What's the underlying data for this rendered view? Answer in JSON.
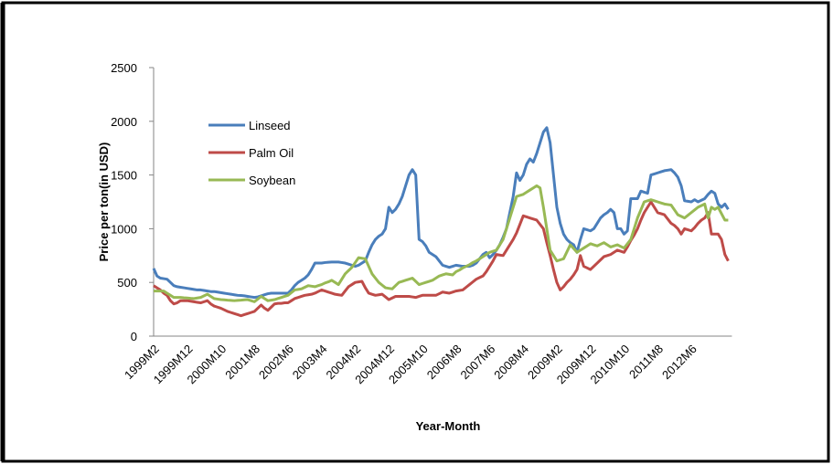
{
  "chart_data": {
    "type": "line",
    "x_label": "Year-Month",
    "y_label": "Price per ton(in USD)",
    "categories": [
      "1999M2",
      null,
      null,
      null,
      null,
      null,
      null,
      null,
      null,
      null,
      "1999M12",
      null,
      null,
      null,
      null,
      null,
      null,
      null,
      null,
      null,
      "2000M10",
      null,
      null,
      null,
      null,
      null,
      null,
      null,
      null,
      null,
      "2001M8",
      null,
      null,
      null,
      null,
      null,
      null,
      null,
      null,
      null,
      "2002M6",
      null,
      null,
      null,
      null,
      null,
      null,
      null,
      null,
      null,
      "2003M4",
      null,
      null,
      null,
      null,
      null,
      null,
      null,
      null,
      null,
      "2004M2",
      null,
      null,
      null,
      null,
      null,
      null,
      null,
      null,
      null,
      "2004M12",
      null,
      null,
      null,
      null,
      null,
      null,
      null,
      null,
      null,
      "2005M10",
      null,
      null,
      null,
      null,
      null,
      null,
      null,
      null,
      null,
      "2006M8",
      null,
      null,
      null,
      null,
      null,
      null,
      null,
      null,
      null,
      "2007M6",
      null,
      null,
      null,
      null,
      null,
      null,
      null,
      null,
      null,
      "2008M4",
      null,
      null,
      null,
      null,
      null,
      null,
      null,
      null,
      null,
      "2009M2",
      null,
      null,
      null,
      null,
      null,
      null,
      null,
      null,
      null,
      "2009M12",
      null,
      null,
      null,
      null,
      null,
      null,
      null,
      null,
      null,
      "2010M10",
      null,
      null,
      null,
      null,
      null,
      null,
      null,
      null,
      null,
      "2011M8",
      null,
      null,
      null,
      null,
      null,
      null,
      null,
      null,
      null,
      "2012M6",
      null,
      null,
      null,
      null,
      null,
      null,
      null,
      null,
      null,
      null,
      null
    ],
    "series": [
      {
        "name": "Linseed",
        "color": "#4a7ebb",
        "values": [
          630,
          560,
          540,
          535,
          530,
          500,
          470,
          460,
          455,
          450,
          445,
          440,
          435,
          430,
          430,
          425,
          420,
          415,
          415,
          410,
          405,
          400,
          395,
          390,
          385,
          380,
          378,
          375,
          370,
          365,
          360,
          365,
          375,
          385,
          395,
          400,
          400,
          400,
          400,
          400,
          400,
          430,
          470,
          500,
          520,
          540,
          570,
          620,
          680,
          680,
          680,
          685,
          688,
          690,
          690,
          690,
          685,
          680,
          670,
          660,
          650,
          660,
          680,
          700,
          780,
          850,
          900,
          930,
          950,
          1000,
          1200,
          1150,
          1180,
          1230,
          1300,
          1400,
          1500,
          1550,
          1500,
          900,
          880,
          840,
          780,
          760,
          740,
          700,
          660,
          650,
          640,
          650,
          660,
          655,
          650,
          650,
          650,
          660,
          680,
          720,
          760,
          780,
          730,
          760,
          800,
          850,
          920,
          1000,
          1150,
          1300,
          1520,
          1450,
          1500,
          1600,
          1650,
          1620,
          1700,
          1800,
          1900,
          1940,
          1800,
          1500,
          1200,
          1050,
          950,
          900,
          870,
          850,
          780,
          900,
          1000,
          990,
          980,
          1000,
          1050,
          1100,
          1130,
          1150,
          1180,
          1150,
          1000,
          1000,
          950,
          980,
          1280,
          1280,
          1280,
          1350,
          1340,
          1330,
          1500,
          1510,
          1520,
          1530,
          1540,
          1545,
          1550,
          1520,
          1480,
          1400,
          1260,
          1255,
          1250,
          1270,
          1250,
          1265,
          1280,
          1320,
          1350,
          1330,
          1230,
          1200,
          1230,
          1180
        ]
      },
      {
        "name": "Palm Oil",
        "color": "#be4b48",
        "values": [
          470,
          450,
          430,
          400,
          380,
          330,
          300,
          310,
          330,
          330,
          330,
          325,
          320,
          315,
          310,
          320,
          330,
          300,
          280,
          270,
          260,
          245,
          230,
          220,
          210,
          200,
          190,
          200,
          210,
          220,
          230,
          260,
          290,
          260,
          240,
          270,
          300,
          305,
          305,
          310,
          310,
          330,
          350,
          360,
          370,
          380,
          385,
          390,
          400,
          415,
          430,
          420,
          410,
          400,
          390,
          385,
          380,
          420,
          460,
          480,
          500,
          505,
          510,
          450,
          400,
          390,
          380,
          385,
          390,
          365,
          340,
          355,
          370,
          370,
          370,
          370,
          370,
          365,
          360,
          370,
          380,
          380,
          380,
          380,
          380,
          395,
          410,
          405,
          400,
          410,
          420,
          425,
          430,
          455,
          480,
          505,
          530,
          545,
          560,
          600,
          650,
          700,
          760,
          755,
          750,
          800,
          850,
          900,
          960,
          1040,
          1120,
          1110,
          1100,
          1090,
          1080,
          1040,
          1000,
          870,
          750,
          620,
          500,
          430,
          460,
          500,
          530,
          570,
          620,
          750,
          650,
          635,
          620,
          650,
          680,
          710,
          740,
          750,
          760,
          780,
          800,
          790,
          780,
          830,
          890,
          940,
          1000,
          1080,
          1150,
          1200,
          1250,
          1200,
          1150,
          1140,
          1130,
          1090,
          1050,
          1030,
          1000,
          950,
          1000,
          990,
          980,
          1010,
          1050,
          1080,
          1100,
          1150,
          950,
          950,
          950,
          900,
          760,
          700
        ]
      },
      {
        "name": "Soybean",
        "color": "#98b954",
        "values": [
          420,
          420,
          420,
          420,
          400,
          380,
          360,
          360,
          360,
          357,
          355,
          352,
          350,
          355,
          360,
          375,
          390,
          370,
          350,
          345,
          340,
          338,
          335,
          333,
          330,
          333,
          335,
          338,
          340,
          330,
          320,
          345,
          370,
          350,
          330,
          335,
          340,
          350,
          360,
          370,
          380,
          405,
          430,
          435,
          440,
          455,
          470,
          465,
          460,
          470,
          480,
          495,
          505,
          520,
          500,
          480,
          530,
          580,
          610,
          640,
          685,
          730,
          725,
          720,
          650,
          580,
          540,
          500,
          475,
          450,
          445,
          440,
          470,
          500,
          510,
          520,
          530,
          540,
          510,
          480,
          490,
          500,
          510,
          520,
          540,
          560,
          570,
          580,
          575,
          570,
          600,
          615,
          635,
          650,
          665,
          685,
          700,
          720,
          740,
          760,
          780,
          790,
          800,
          850,
          900,
          1000,
          1100,
          1200,
          1300,
          1310,
          1320,
          1340,
          1360,
          1380,
          1400,
          1380,
          1200,
          1000,
          800,
          750,
          700,
          710,
          720,
          785,
          850,
          815,
          780,
          800,
          820,
          840,
          860,
          850,
          840,
          855,
          870,
          850,
          830,
          840,
          850,
          835,
          820,
          860,
          900,
          1000,
          1100,
          1175,
          1250,
          1260,
          1270,
          1260,
          1250,
          1240,
          1230,
          1225,
          1220,
          1175,
          1130,
          1115,
          1100,
          1125,
          1150,
          1175,
          1200,
          1215,
          1230,
          1100,
          1200,
          1180,
          1200,
          1140,
          1080,
          1080
        ]
      }
    ],
    "ylim": [
      0,
      2500
    ],
    "yticks": [
      0,
      500,
      1000,
      1500,
      2000,
      2500
    ],
    "grid": false
  }
}
